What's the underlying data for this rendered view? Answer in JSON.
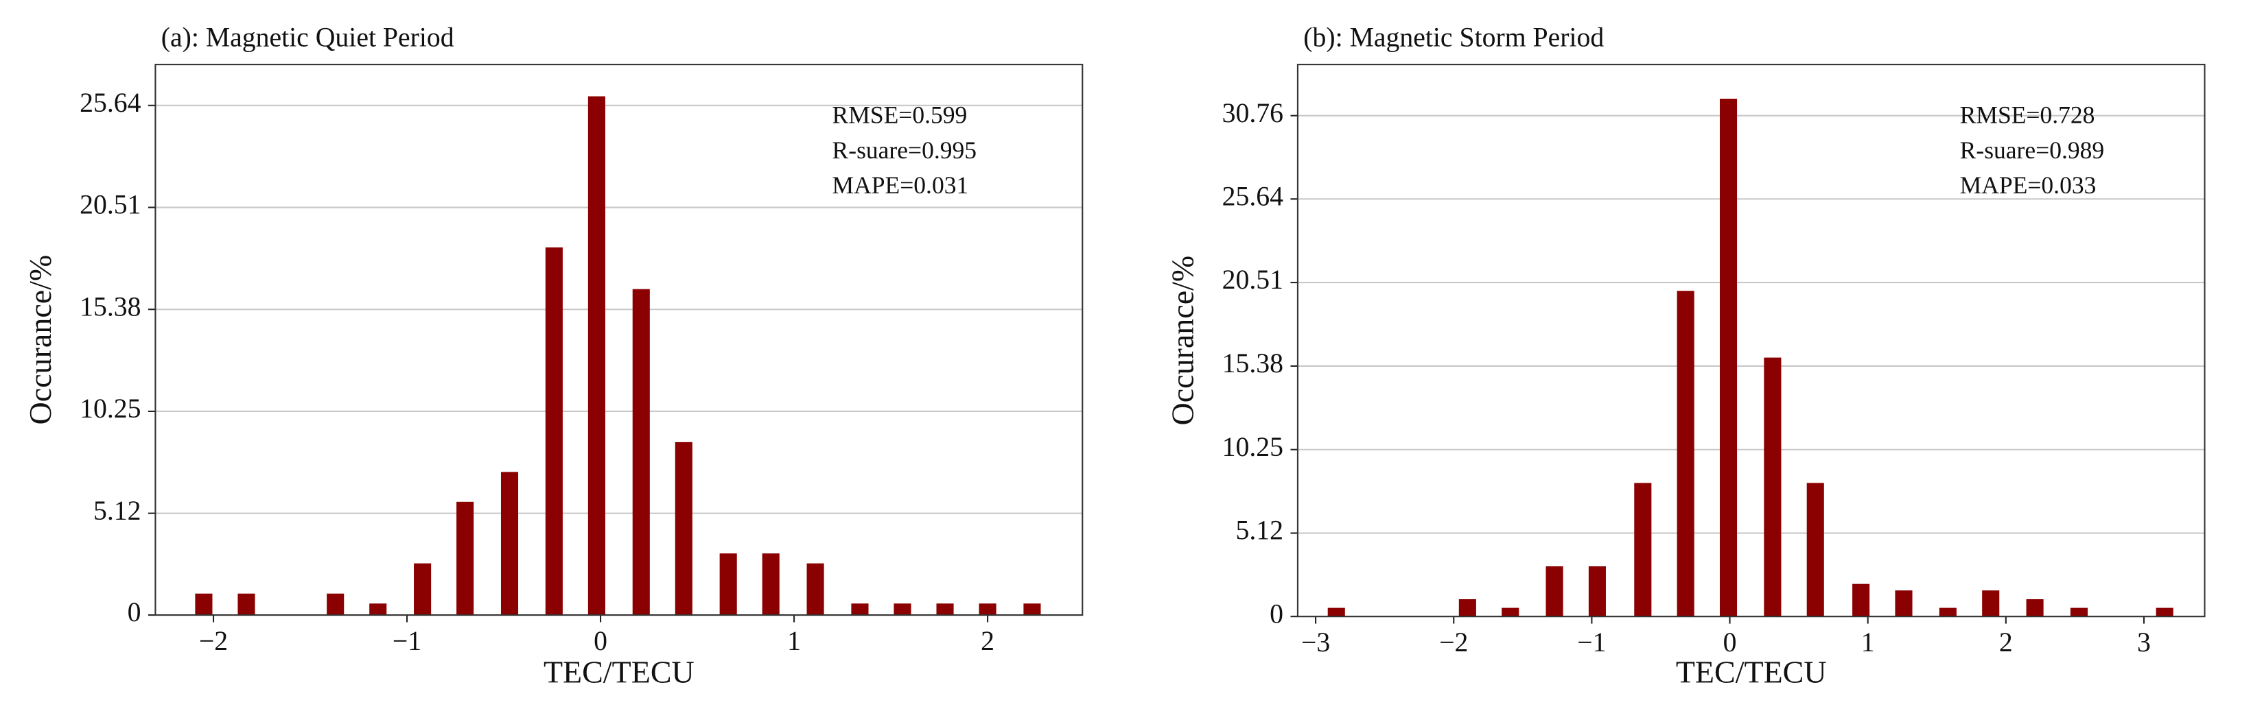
{
  "chart_data": [
    {
      "type": "bar",
      "title": "(a):  Magnetic Quiet Period",
      "x_label": "TEC/TECU",
      "y_label": "Occurance/%",
      "annotations": [
        "RMSE=0.599",
        "R-suare=0.995",
        "MAPE=0.031"
      ],
      "color": "#8b0000",
      "grid": true,
      "x": [
        -2.05,
        -1.83,
        -1.37,
        -1.15,
        -0.92,
        -0.7,
        -0.47,
        -0.24,
        -0.02,
        0.21,
        0.43,
        0.66,
        0.88,
        1.11,
        1.34,
        1.56,
        1.78,
        2.0,
        2.23
      ],
      "values": [
        1.08,
        1.08,
        1.08,
        0.58,
        2.6,
        5.7,
        7.2,
        18.5,
        26.1,
        16.4,
        8.7,
        3.1,
        3.1,
        2.6,
        0.58,
        0.58,
        0.58,
        0.58,
        0.58
      ],
      "xlim": [
        -2.3,
        2.49
      ],
      "ylim": [
        0,
        27.7
      ],
      "xticks": [
        {
          "value": -2,
          "label": "−2"
        },
        {
          "value": -1,
          "label": "−1"
        },
        0,
        1,
        2
      ],
      "yticks": [
        0,
        5.12,
        10.25,
        15.38,
        20.51,
        25.64
      ]
    },
    {
      "type": "bar",
      "title": "(b):  Magnetic Storm Period",
      "x_label": "TEC/TECU",
      "y_label": "Occurance/%",
      "annotations": [
        "RMSE=0.728",
        "R-suare=0.989",
        "MAPE=0.033"
      ],
      "color": "#8b0000",
      "grid": true,
      "x": [
        -2.85,
        -1.9,
        -1.59,
        -1.27,
        -0.96,
        -0.63,
        -0.32,
        -0.01,
        0.31,
        0.62,
        0.95,
        1.26,
        1.58,
        1.89,
        2.21,
        2.53,
        3.15
      ],
      "values": [
        0.53,
        1.06,
        0.53,
        3.08,
        3.08,
        8.2,
        20.0,
        31.8,
        15.9,
        8.2,
        2.0,
        1.6,
        0.53,
        1.6,
        1.06,
        0.53,
        0.53
      ],
      "xlim": [
        -3.13,
        3.44
      ],
      "ylim": [
        0,
        33.9
      ],
      "xticks": [
        {
          "value": -3,
          "label": "−3"
        },
        {
          "value": -2,
          "label": "−2"
        },
        {
          "value": -1,
          "label": "−1"
        },
        0,
        1,
        2,
        3
      ],
      "yticks": [
        0,
        5.12,
        10.25,
        15.38,
        20.51,
        25.64,
        30.76
      ]
    }
  ]
}
